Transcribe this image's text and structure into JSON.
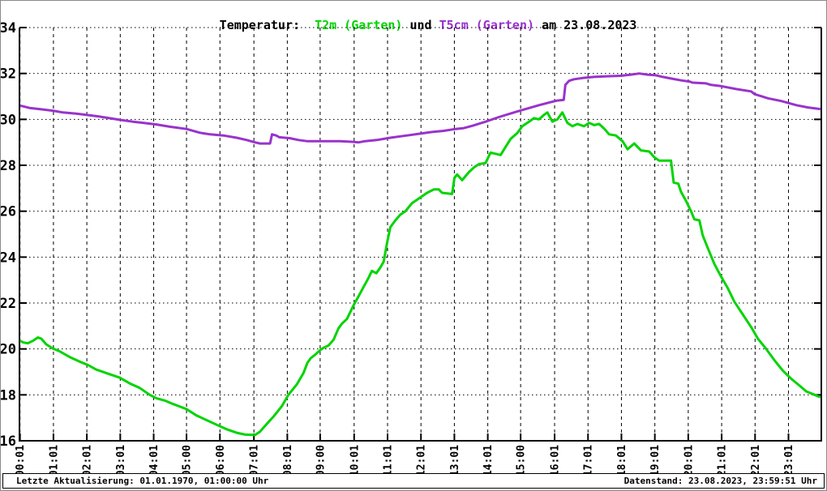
{
  "title": {
    "prefix": "Temperatur:  ",
    "series1_label": "T2m (Garten)",
    "middle": " und ",
    "series2_label": "T5cm (Garten)",
    "suffix": " am 23.08.2023"
  },
  "status_bar": {
    "left": "Letzte Aktualisierung: 01.01.1970, 01:00:00 Uhr",
    "right": "Datenstand: 23.08.2023, 23:59:51 Uhr"
  },
  "colors": {
    "t2m": "#00d400",
    "t5cm": "#9933cc",
    "axis": "#000000",
    "background": "#ffffff"
  },
  "chart_data": {
    "type": "line",
    "title": "Temperatur: T2m (Garten) und T5cm (Garten) am 23.08.2023",
    "xlabel": "",
    "ylabel": "",
    "ylim": [
      16,
      34
    ],
    "ytick_step": 2,
    "yticks": [
      16,
      18,
      20,
      22,
      24,
      26,
      28,
      30,
      32,
      34
    ],
    "xlim_hours": [
      0,
      24
    ],
    "grid": true,
    "legend_position": "none",
    "xticks": [
      {
        "label": "00:01",
        "hour": 0.017
      },
      {
        "label": "01:01",
        "hour": 1.017
      },
      {
        "label": "02:01",
        "hour": 2.017
      },
      {
        "label": "03:01",
        "hour": 3.017
      },
      {
        "label": "04:01",
        "hour": 4.017
      },
      {
        "label": "05:00",
        "hour": 5.0
      },
      {
        "label": "06:00",
        "hour": 6.0
      },
      {
        "label": "07:01",
        "hour": 7.017
      },
      {
        "label": "08:01",
        "hour": 8.017
      },
      {
        "label": "09:00",
        "hour": 9.0
      },
      {
        "label": "10:01",
        "hour": 10.017
      },
      {
        "label": "11:01",
        "hour": 11.017
      },
      {
        "label": "12:01",
        "hour": 12.017
      },
      {
        "label": "13:01",
        "hour": 13.017
      },
      {
        "label": "14:01",
        "hour": 14.017
      },
      {
        "label": "15:00",
        "hour": 15.0
      },
      {
        "label": "16:01",
        "hour": 16.017
      },
      {
        "label": "17:01",
        "hour": 17.017
      },
      {
        "label": "18:01",
        "hour": 18.017
      },
      {
        "label": "19:01",
        "hour": 19.017
      },
      {
        "label": "20:01",
        "hour": 20.017
      },
      {
        "label": "21:01",
        "hour": 21.017
      },
      {
        "label": "22:01",
        "hour": 22.017
      },
      {
        "label": "23:01",
        "hour": 23.017
      }
    ],
    "series": [
      {
        "id": "t2m-line",
        "name": "T2m (Garten)",
        "color": "#00d400",
        "points": [
          [
            0.02,
            20.35
          ],
          [
            0.12,
            20.28
          ],
          [
            0.25,
            20.25
          ],
          [
            0.4,
            20.35
          ],
          [
            0.55,
            20.5
          ],
          [
            0.65,
            20.45
          ],
          [
            0.8,
            20.2
          ],
          [
            1.0,
            20.02
          ],
          [
            1.2,
            19.9
          ],
          [
            1.5,
            19.65
          ],
          [
            1.8,
            19.45
          ],
          [
            2.05,
            19.3
          ],
          [
            2.3,
            19.1
          ],
          [
            2.6,
            18.95
          ],
          [
            3.0,
            18.75
          ],
          [
            3.3,
            18.5
          ],
          [
            3.6,
            18.3
          ],
          [
            3.9,
            18.0
          ],
          [
            4.1,
            17.85
          ],
          [
            4.35,
            17.75
          ],
          [
            4.6,
            17.6
          ],
          [
            5.0,
            17.38
          ],
          [
            5.3,
            17.1
          ],
          [
            5.6,
            16.9
          ],
          [
            5.9,
            16.7
          ],
          [
            6.2,
            16.5
          ],
          [
            6.5,
            16.35
          ],
          [
            6.75,
            16.27
          ],
          [
            7.05,
            16.25
          ],
          [
            7.2,
            16.4
          ],
          [
            7.35,
            16.65
          ],
          [
            7.6,
            17.05
          ],
          [
            7.85,
            17.5
          ],
          [
            8.05,
            18.0
          ],
          [
            8.3,
            18.45
          ],
          [
            8.5,
            18.95
          ],
          [
            8.62,
            19.4
          ],
          [
            8.72,
            19.6
          ],
          [
            8.85,
            19.75
          ],
          [
            9.0,
            19.95
          ],
          [
            9.1,
            20.05
          ],
          [
            9.25,
            20.15
          ],
          [
            9.4,
            20.4
          ],
          [
            9.55,
            20.9
          ],
          [
            9.65,
            21.1
          ],
          [
            9.8,
            21.3
          ],
          [
            10.0,
            21.9
          ],
          [
            10.15,
            22.3
          ],
          [
            10.3,
            22.7
          ],
          [
            10.45,
            23.1
          ],
          [
            10.55,
            23.4
          ],
          [
            10.68,
            23.3
          ],
          [
            10.8,
            23.55
          ],
          [
            10.9,
            23.8
          ],
          [
            11.0,
            24.6
          ],
          [
            11.1,
            25.3
          ],
          [
            11.25,
            25.6
          ],
          [
            11.4,
            25.85
          ],
          [
            11.55,
            26.0
          ],
          [
            11.75,
            26.35
          ],
          [
            11.95,
            26.55
          ],
          [
            12.2,
            26.8
          ],
          [
            12.4,
            26.95
          ],
          [
            12.55,
            26.95
          ],
          [
            12.65,
            26.8
          ],
          [
            12.95,
            26.75
          ],
          [
            13.02,
            27.45
          ],
          [
            13.1,
            27.6
          ],
          [
            13.25,
            27.35
          ],
          [
            13.45,
            27.7
          ],
          [
            13.6,
            27.9
          ],
          [
            13.75,
            28.05
          ],
          [
            13.95,
            28.1
          ],
          [
            14.1,
            28.55
          ],
          [
            14.25,
            28.5
          ],
          [
            14.4,
            28.45
          ],
          [
            14.55,
            28.8
          ],
          [
            14.7,
            29.15
          ],
          [
            14.9,
            29.4
          ],
          [
            15.05,
            29.7
          ],
          [
            15.25,
            29.9
          ],
          [
            15.4,
            30.05
          ],
          [
            15.55,
            30.0
          ],
          [
            15.7,
            30.2
          ],
          [
            15.8,
            30.3
          ],
          [
            15.95,
            29.9
          ],
          [
            16.1,
            30.0
          ],
          [
            16.25,
            30.3
          ],
          [
            16.4,
            29.85
          ],
          [
            16.55,
            29.7
          ],
          [
            16.7,
            29.8
          ],
          [
            16.9,
            29.7
          ],
          [
            17.05,
            29.85
          ],
          [
            17.2,
            29.75
          ],
          [
            17.35,
            29.8
          ],
          [
            17.5,
            29.6
          ],
          [
            17.65,
            29.35
          ],
          [
            17.85,
            29.3
          ],
          [
            18.05,
            29.05
          ],
          [
            18.2,
            28.7
          ],
          [
            18.4,
            28.95
          ],
          [
            18.6,
            28.65
          ],
          [
            18.85,
            28.6
          ],
          [
            19.0,
            28.35
          ],
          [
            19.15,
            28.2
          ],
          [
            19.5,
            28.2
          ],
          [
            19.58,
            27.25
          ],
          [
            19.72,
            27.2
          ],
          [
            19.8,
            26.85
          ],
          [
            19.95,
            26.45
          ],
          [
            20.1,
            26.0
          ],
          [
            20.2,
            25.65
          ],
          [
            20.35,
            25.6
          ],
          [
            20.45,
            24.95
          ],
          [
            20.6,
            24.4
          ],
          [
            20.8,
            23.7
          ],
          [
            21.0,
            23.15
          ],
          [
            21.2,
            22.65
          ],
          [
            21.4,
            22.05
          ],
          [
            21.65,
            21.5
          ],
          [
            21.9,
            20.95
          ],
          [
            22.1,
            20.45
          ],
          [
            22.35,
            20.0
          ],
          [
            22.6,
            19.5
          ],
          [
            22.85,
            19.05
          ],
          [
            23.1,
            18.7
          ],
          [
            23.35,
            18.4
          ],
          [
            23.55,
            18.15
          ],
          [
            23.8,
            18.0
          ],
          [
            23.97,
            17.9
          ]
        ]
      },
      {
        "id": "t5cm-line",
        "name": "T5cm (Garten)",
        "color": "#9933cc",
        "points": [
          [
            0.02,
            30.6
          ],
          [
            0.3,
            30.5
          ],
          [
            0.6,
            30.45
          ],
          [
            1.0,
            30.38
          ],
          [
            1.3,
            30.3
          ],
          [
            1.7,
            30.25
          ],
          [
            2.0,
            30.2
          ],
          [
            2.4,
            30.12
          ],
          [
            2.7,
            30.05
          ],
          [
            3.0,
            29.98
          ],
          [
            3.4,
            29.9
          ],
          [
            3.7,
            29.85
          ],
          [
            4.1,
            29.78
          ],
          [
            4.5,
            29.68
          ],
          [
            5.0,
            29.58
          ],
          [
            5.4,
            29.42
          ],
          [
            5.7,
            29.35
          ],
          [
            6.1,
            29.3
          ],
          [
            6.5,
            29.2
          ],
          [
            6.8,
            29.1
          ],
          [
            7.05,
            29.0
          ],
          [
            7.2,
            28.95
          ],
          [
            7.5,
            28.95
          ],
          [
            7.56,
            29.35
          ],
          [
            7.68,
            29.3
          ],
          [
            7.78,
            29.22
          ],
          [
            8.1,
            29.18
          ],
          [
            8.35,
            29.1
          ],
          [
            8.6,
            29.05
          ],
          [
            9.0,
            29.05
          ],
          [
            9.6,
            29.05
          ],
          [
            10.0,
            29.02
          ],
          [
            10.15,
            29.0
          ],
          [
            10.35,
            29.05
          ],
          [
            10.7,
            29.1
          ],
          [
            11.1,
            29.2
          ],
          [
            11.6,
            29.3
          ],
          [
            12.0,
            29.38
          ],
          [
            12.35,
            29.45
          ],
          [
            12.7,
            29.5
          ],
          [
            13.05,
            29.58
          ],
          [
            13.3,
            29.62
          ],
          [
            13.55,
            29.72
          ],
          [
            13.95,
            29.9
          ],
          [
            14.35,
            30.1
          ],
          [
            14.75,
            30.28
          ],
          [
            15.15,
            30.45
          ],
          [
            15.55,
            30.62
          ],
          [
            15.9,
            30.75
          ],
          [
            16.1,
            30.82
          ],
          [
            16.29,
            30.85
          ],
          [
            16.34,
            31.5
          ],
          [
            16.45,
            31.68
          ],
          [
            16.6,
            31.75
          ],
          [
            16.85,
            31.8
          ],
          [
            17.2,
            31.85
          ],
          [
            17.6,
            31.88
          ],
          [
            18.0,
            31.9
          ],
          [
            18.3,
            31.95
          ],
          [
            18.55,
            32.0
          ],
          [
            18.8,
            31.95
          ],
          [
            19.05,
            31.92
          ],
          [
            19.25,
            31.85
          ],
          [
            19.5,
            31.78
          ],
          [
            19.8,
            31.7
          ],
          [
            20.05,
            31.65
          ],
          [
            20.15,
            31.6
          ],
          [
            20.55,
            31.57
          ],
          [
            20.7,
            31.5
          ],
          [
            21.0,
            31.45
          ],
          [
            21.45,
            31.32
          ],
          [
            21.9,
            31.22
          ],
          [
            22.0,
            31.1
          ],
          [
            22.15,
            31.03
          ],
          [
            22.4,
            30.92
          ],
          [
            22.8,
            30.8
          ],
          [
            23.0,
            30.72
          ],
          [
            23.25,
            30.62
          ],
          [
            23.6,
            30.52
          ],
          [
            23.97,
            30.45
          ]
        ]
      }
    ]
  }
}
